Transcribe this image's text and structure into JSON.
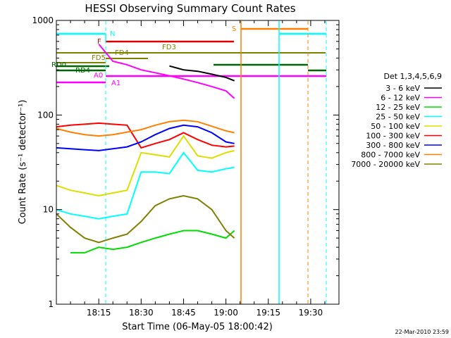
{
  "chart_data": {
    "type": "line",
    "title": "HESSI Observing Summary Count Rates",
    "xlabel": "Start Time (06-May-05 18:00:42)",
    "ylabel": "Count Rate (s⁻¹ detector⁻¹)",
    "yscale": "log",
    "ylim": [
      1,
      1000
    ],
    "xlim_minutes": [
      0,
      100
    ],
    "x_tick_labels": [
      "18:15",
      "18:30",
      "18:45",
      "19:00",
      "19:15",
      "19:30"
    ],
    "x_tick_minutes": [
      15,
      30,
      45,
      60,
      75,
      90
    ],
    "y_tick_labels": [
      "1",
      "10",
      "100",
      "1000"
    ],
    "y_tick_values": [
      1,
      10,
      100,
      1000
    ],
    "timestamp": "22-Mar-2010 23:59",
    "legend_title": "Det 1,3,4,5,6,9",
    "series": [
      {
        "name": "3 - 6 keV",
        "color": "#000000",
        "x": [
          40,
          45,
          50,
          55,
          60,
          63
        ],
        "values": [
          330,
          300,
          290,
          270,
          250,
          230
        ]
      },
      {
        "name": "6 - 12 keV",
        "color": "#ff00ff",
        "x": [
          15,
          20,
          25,
          30,
          35,
          40,
          45,
          50,
          55,
          60,
          63
        ],
        "values": [
          560,
          370,
          340,
          300,
          280,
          260,
          240,
          220,
          200,
          180,
          150
        ]
      },
      {
        "name": "12 - 25 keV",
        "color": "#00dd00",
        "x": [
          5,
          10,
          15,
          20,
          25,
          30,
          35,
          40,
          45,
          50,
          55,
          60,
          63
        ],
        "values": [
          3.5,
          3.5,
          4,
          3.8,
          4,
          4.5,
          5,
          5.5,
          6,
          6,
          5.5,
          5,
          6
        ]
      },
      {
        "name": "25 - 50 keV",
        "color": "#00ffff",
        "x": [
          0,
          5,
          10,
          15,
          20,
          25,
          30,
          35,
          40,
          45,
          50,
          55,
          60,
          63
        ],
        "values": [
          10,
          9,
          8.5,
          8,
          8.5,
          9,
          25,
          25,
          24,
          40,
          26,
          25,
          27,
          28
        ]
      },
      {
        "name": "50 - 100 keV",
        "color": "#dddd00",
        "x": [
          0,
          5,
          10,
          15,
          20,
          25,
          30,
          35,
          40,
          45,
          50,
          55,
          60,
          63
        ],
        "values": [
          18,
          16,
          15,
          14,
          15,
          16,
          40,
          38,
          36,
          60,
          37,
          35,
          40,
          42
        ]
      },
      {
        "name": "100 - 300 keV",
        "color": "#ff0000",
        "x": [
          0,
          5,
          10,
          15,
          20,
          25,
          30,
          35,
          40,
          45,
          50,
          55,
          60,
          63
        ],
        "values": [
          75,
          78,
          80,
          82,
          80,
          78,
          45,
          50,
          55,
          65,
          55,
          48,
          46,
          47
        ]
      },
      {
        "name": "300 - 800 keV",
        "color": "#0000ff",
        "x": [
          0,
          5,
          10,
          15,
          20,
          25,
          30,
          35,
          40,
          45,
          50,
          55,
          60,
          63
        ],
        "values": [
          45,
          44,
          43,
          42,
          44,
          46,
          52,
          62,
          72,
          78,
          75,
          65,
          52,
          50
        ]
      },
      {
        "name": "800 - 7000 keV",
        "color": "#ff8000",
        "x": [
          0,
          5,
          10,
          15,
          20,
          25,
          30,
          35,
          40,
          45,
          50,
          55,
          60,
          63
        ],
        "values": [
          72,
          66,
          62,
          60,
          62,
          66,
          70,
          78,
          85,
          88,
          85,
          76,
          68,
          65
        ]
      },
      {
        "name": "7000 - 20000 keV",
        "color": "#808000",
        "x": [
          0,
          5,
          10,
          15,
          20,
          25,
          30,
          35,
          40,
          45,
          50,
          55,
          60,
          63
        ],
        "values": [
          9,
          6.5,
          5,
          4.5,
          5,
          5.5,
          7.5,
          11,
          13,
          14,
          13,
          10,
          6,
          5
        ]
      }
    ],
    "annotations": [
      {
        "label": "N",
        "color": "#00ffff",
        "x": 16
      },
      {
        "label": "F",
        "color": "#dd0000",
        "x": 13
      },
      {
        "label": "S",
        "color": "#ff8000",
        "x": 63
      },
      {
        "label": "FD3",
        "color": "#808000",
        "x": 40
      },
      {
        "label": "FD4",
        "color": "#808000",
        "x": 18
      },
      {
        "label": "FD5",
        "color": "#808000",
        "x": 11
      },
      {
        "label": "RD0",
        "color": "#006600",
        "x": -3
      },
      {
        "label": "RD4",
        "color": "#006600",
        "x": 4
      },
      {
        "label": "A0",
        "color": "#ff00ff",
        "x": 11
      },
      {
        "label": "A1",
        "color": "#ff00ff",
        "x": 15
      }
    ]
  }
}
